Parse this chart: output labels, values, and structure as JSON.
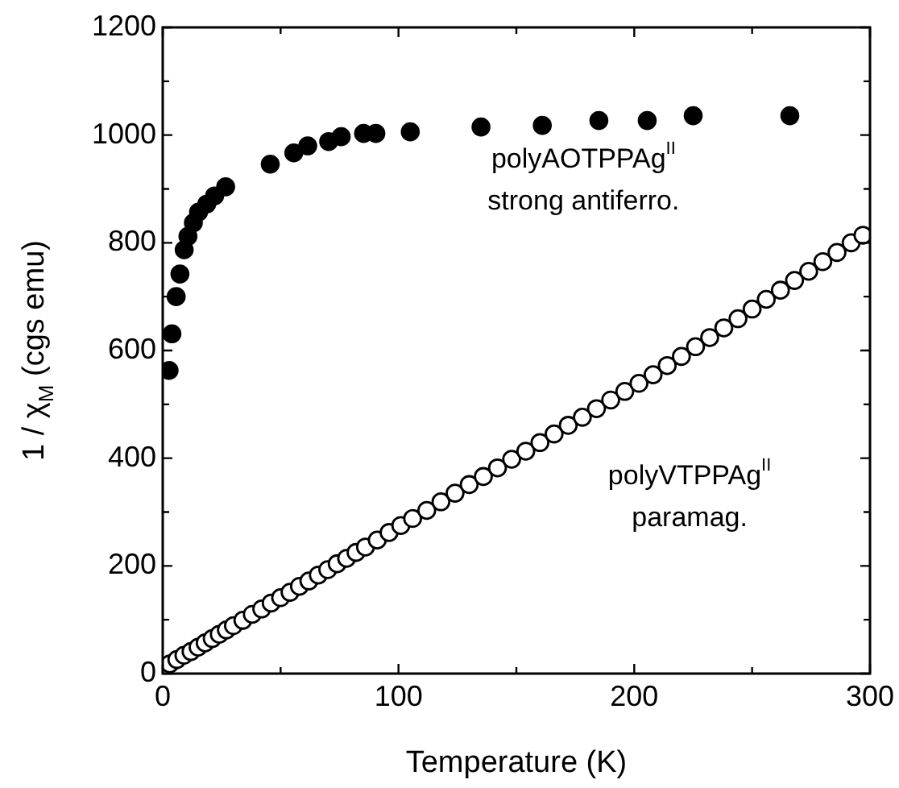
{
  "chart_data": {
    "type": "scatter",
    "xlabel": "Temperature (K)",
    "ylabel": "1 / χ$_{M}$ (cgs emu)",
    "xlim": [
      0,
      300
    ],
    "ylim": [
      0,
      1200
    ],
    "xticks": [
      0,
      {
        "value": 50,
        "label": null
      },
      100,
      {
        "value": 150,
        "label": null
      },
      200,
      {
        "value": 250,
        "label": null
      },
      300
    ],
    "yticks": [
      0,
      {
        "value": 100,
        "label": null
      },
      200,
      {
        "value": 300,
        "label": null
      },
      400,
      {
        "value": 500,
        "label": null
      },
      600,
      {
        "value": 700,
        "label": null
      },
      800,
      {
        "value": 900,
        "label": null
      },
      1000,
      {
        "value": 1100,
        "label": null
      },
      1200
    ],
    "grid": false,
    "legend": false,
    "marker": "circle",
    "series": [
      {
        "name": "polyAOTPPAg$^{II}$",
        "color": "#000000",
        "x": [
          2.7,
          3.9,
          5.7,
          7.3,
          9.1,
          10.7,
          13,
          15.2,
          18.7,
          22,
          26.7,
          45.6,
          55.6,
          61.5,
          70.4,
          75.7,
          85.2,
          90.4,
          105,
          135,
          161,
          185,
          205.5,
          225,
          266
        ],
        "values": [
          563,
          631,
          700,
          742,
          787,
          812,
          837,
          857,
          872,
          887,
          904,
          946,
          967,
          980,
          988,
          997,
          1003,
          1003,
          1006,
          1015,
          1018,
          1027,
          1027,
          1036,
          1036
        ]
      },
      {
        "name": "polyVTPPAg$^{II}$",
        "color": "#ffffff",
        "x": [
          3,
          6,
          9,
          12,
          15,
          18,
          21,
          24,
          27,
          30,
          34,
          38,
          42,
          46,
          50,
          54,
          58,
          62,
          66,
          70,
          74,
          78,
          82,
          86,
          91,
          96,
          101,
          106,
          112,
          118,
          124,
          130,
          136,
          142,
          148,
          154,
          160,
          166,
          172,
          178,
          184,
          190,
          196,
          202,
          208,
          214,
          220,
          226,
          232,
          238,
          244,
          250,
          256,
          262,
          268,
          274,
          280,
          286,
          292,
          297
        ],
        "values": [
          18,
          26,
          34,
          41,
          49,
          57,
          65,
          73,
          81,
          89,
          99,
          110,
          120,
          131,
          141,
          151,
          162,
          172,
          183,
          193,
          204,
          214,
          225,
          235,
          248,
          262,
          275,
          288,
          303,
          319,
          335,
          351,
          366,
          382,
          398,
          413,
          429,
          445,
          461,
          476,
          492,
          508,
          524,
          539,
          555,
          572,
          589,
          607,
          624,
          642,
          659,
          677,
          695,
          712,
          730,
          747,
          765,
          782,
          800,
          814
        ]
      }
    ],
    "annotations": [
      "strong antiferro.",
      "paramag."
    ]
  }
}
